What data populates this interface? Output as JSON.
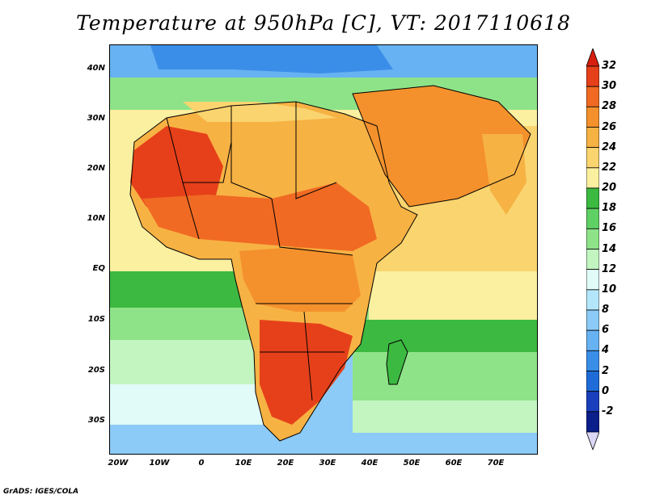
{
  "title": "Temperature at 950hPa [C], VT: 2017110618",
  "footer": "GrADS: IGES/COLA",
  "lat_labels": [
    "40N",
    "30N",
    "20N",
    "10N",
    "EQ",
    "10S",
    "20S",
    "30S"
  ],
  "lon_labels": [
    "20W",
    "10W",
    "0",
    "10E",
    "20E",
    "30E",
    "40E",
    "50E",
    "60E",
    "70E"
  ],
  "colorbar": {
    "labels": [
      "32",
      "30",
      "28",
      "26",
      "24",
      "22",
      "20",
      "18",
      "16",
      "14",
      "12",
      "10",
      "8",
      "6",
      "4",
      "2",
      "0",
      "-2"
    ],
    "colors": [
      "#e6401a",
      "#f06a23",
      "#f4912c",
      "#f7b244",
      "#fad46f",
      "#fbf0a0",
      "#3cb941",
      "#5fd064",
      "#8ee388",
      "#c2f5c0",
      "#e1fbf8",
      "#b4e6fb",
      "#8ccaf7",
      "#67b2f2",
      "#3b8ee8",
      "#1f6cd8",
      "#1a3fbc",
      "#0b1f8a"
    ],
    "top_triangle": "#d81e0e",
    "bottom_triangle": "#dcd8f8"
  }
}
